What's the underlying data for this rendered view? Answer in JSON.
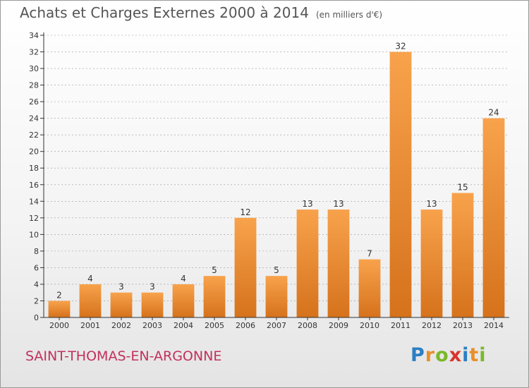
{
  "title": {
    "main": "Achats et Charges Externes 2000 à 2014",
    "unit": "(en milliers d'€)"
  },
  "commune": "SAINT-THOMAS-EN-ARGONNE",
  "logo": {
    "text": "Proxiti",
    "letters": [
      "P",
      "r",
      "o",
      "x",
      "i",
      "t",
      "i"
    ],
    "colors": [
      "#2a7fc4",
      "#e8902a",
      "#7ab829",
      "#d8342c",
      "#2a7fc4",
      "#e8902a",
      "#7ab829"
    ]
  },
  "colors": {
    "bar_light": "#f8a24c",
    "bar_dark": "#d6721c",
    "axis": "#333333",
    "grid": "#999999"
  },
  "chart_data": {
    "type": "bar",
    "title": "Achats et Charges Externes 2000 à 2014",
    "subtitle": "(en milliers d'€)",
    "categories": [
      "2000",
      "2001",
      "2002",
      "2003",
      "2004",
      "2005",
      "2006",
      "2007",
      "2008",
      "2009",
      "2010",
      "2011",
      "2012",
      "2013",
      "2014"
    ],
    "values": [
      2,
      4,
      3,
      3,
      4,
      5,
      12,
      5,
      13,
      13,
      7,
      32,
      13,
      15,
      24
    ],
    "ylim": [
      0,
      34
    ],
    "yticks": [
      0,
      2,
      4,
      6,
      8,
      10,
      12,
      14,
      16,
      18,
      20,
      22,
      24,
      26,
      28,
      30,
      32,
      34
    ],
    "grid": true,
    "data_labels": true
  }
}
